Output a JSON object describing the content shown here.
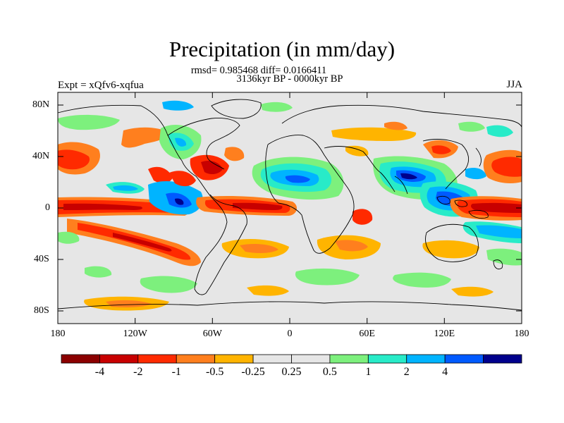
{
  "figure": {
    "title": "Precipitation (in mm/day)",
    "stats": "rmsd= 0.985468 diff= 0.0166411",
    "period": "3136kyr BP - 0000kyr BP",
    "experiment": "Expt = xQfv6-xqfua",
    "season": "JJA"
  },
  "axes": {
    "lat_labels": [
      "80N",
      "40N",
      "0",
      "40S",
      "80S"
    ],
    "lon_labels": [
      "180",
      "120W",
      "60W",
      "0",
      "60E",
      "120E",
      "180"
    ]
  },
  "colorbar": {
    "colors": [
      "#8b0000",
      "#c80000",
      "#ff2a00",
      "#ff7f1e",
      "#ffb400",
      "#e6e6e6",
      "#e6e6e6",
      "#7df07d",
      "#28ebc8",
      "#00b4ff",
      "#005aff",
      "#00008c"
    ],
    "tick_labels": [
      "-4",
      "-2",
      "-1",
      "-0.5",
      "-0.25",
      "0.25",
      "0.5",
      "1",
      "2",
      "4"
    ]
  },
  "palette": {
    "neutral": "#e6e6e6",
    "coast": "#000000"
  }
}
